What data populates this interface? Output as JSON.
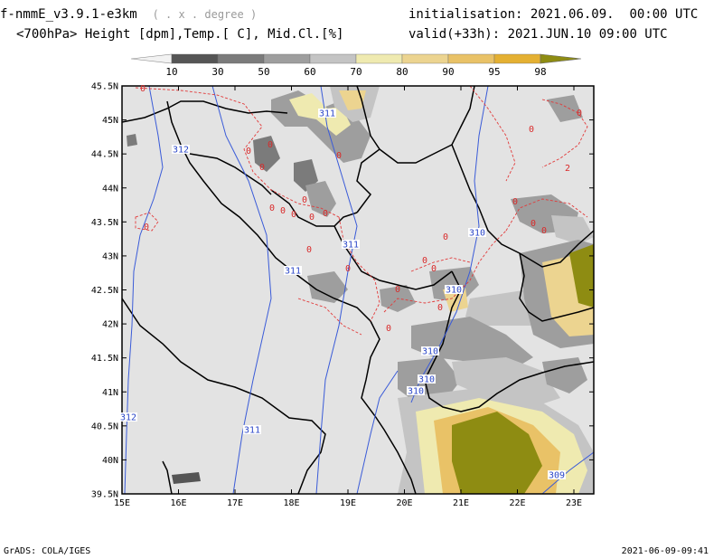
{
  "header": {
    "model": "f-nmmE_v3.9.1-e3km",
    "units_hint": "( . x . degree )",
    "subtitle": "<700hPa> Height [dpm],Temp.[ C], Mid.Cl.[%]",
    "init_label": "initialisation:",
    "init_value": "2021.06.09.  00:00 UTC",
    "valid_label": "valid(+33h):",
    "valid_value": "2021.JUN.10 09:00 UTC"
  },
  "colorbar": {
    "labels": [
      "10",
      "30",
      "50",
      "60",
      "70",
      "80",
      "90",
      "95",
      "98"
    ],
    "colors": [
      "#f2f2f2",
      "#555555",
      "#7b7b7b",
      "#9e9e9e",
      "#c4c4c4",
      "#efeab0",
      "#ecd490",
      "#e9c267",
      "#e4b032",
      "#8e8c12"
    ]
  },
  "map": {
    "background": "#e3e3e3",
    "lat_labels": [
      "45.5N",
      "45N",
      "44.5N",
      "44N",
      "43.5N",
      "43N",
      "42.5N",
      "42N",
      "41.5N",
      "41N",
      "40.5N",
      "40N",
      "39.5N"
    ],
    "lon_labels": [
      "15E",
      "16E",
      "17E",
      "18E",
      "19E",
      "20E",
      "21E",
      "22E",
      "23E"
    ],
    "height_contours": [
      "311",
      "312",
      "311",
      "311",
      "310",
      "310",
      "310",
      "310",
      "310",
      "312",
      "311",
      "309"
    ],
    "temp_contours": [
      "0",
      "0",
      "0",
      "0",
      "0",
      "0",
      "0",
      "0",
      "0",
      "0",
      "0",
      "0",
      "0",
      "0",
      "0",
      "0",
      "0",
      "0",
      "2",
      "0",
      "0",
      "0",
      "0",
      "0",
      "0",
      "0"
    ]
  },
  "footer": {
    "left": "GrADS: COLA/IGES",
    "right": "2021-06-09-09:41"
  }
}
